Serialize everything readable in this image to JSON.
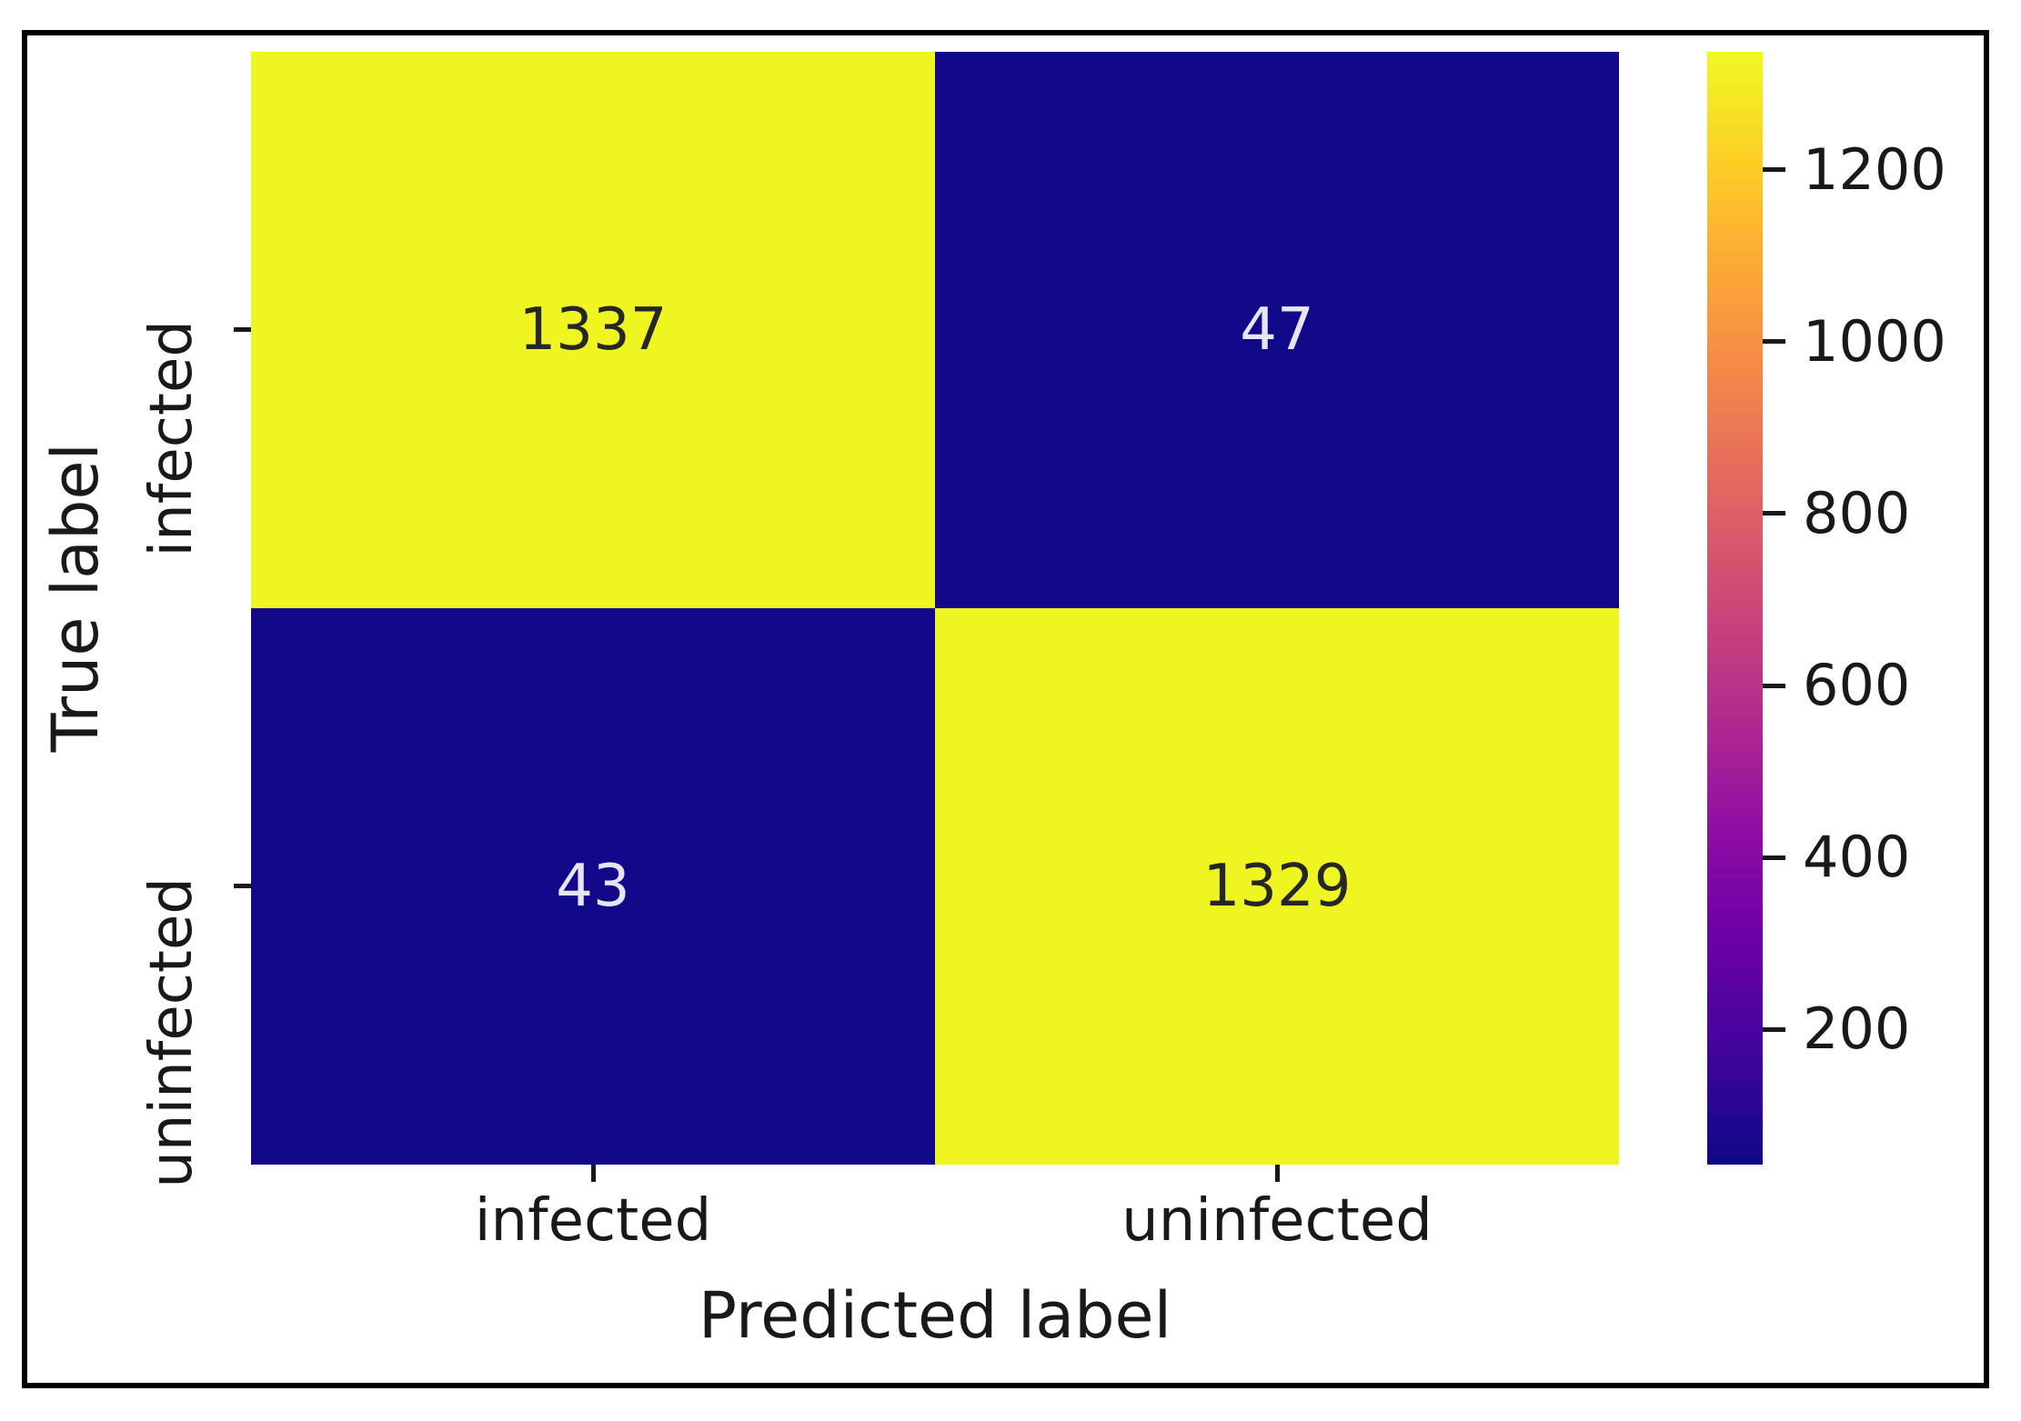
{
  "figure": {
    "kind": "confusion-matrix-heatmap",
    "background": "#ffffff",
    "frame_color": "#000000",
    "text_color": "#191919"
  },
  "chart_data": {
    "type": "heatmap",
    "title": "",
    "xlabel": "Predicted label",
    "ylabel": "True label",
    "x_categories": [
      "infected",
      "uninfected"
    ],
    "y_categories": [
      "infected",
      "uninfected"
    ],
    "matrix": [
      [
        1337,
        47
      ],
      [
        43,
        1329
      ]
    ],
    "cell_colors": [
      [
        "#eff521",
        "#11098a"
      ],
      [
        "#11098a",
        "#eff521"
      ]
    ],
    "cell_text_colors": [
      [
        "#262626",
        "#e7e5f4"
      ],
      [
        "#e7e5f4",
        "#262626"
      ]
    ],
    "colormap": "plasma",
    "vmin": 43,
    "vmax": 1337,
    "grid": false,
    "legend_position": "colorbar-right",
    "colorbar": {
      "ticks": [
        200,
        400,
        600,
        800,
        1000,
        1200
      ],
      "gradient_stops": [
        "#0d0887",
        "#41049d",
        "#6a00a8",
        "#8f0da4",
        "#b12a90",
        "#cc4778",
        "#e16462",
        "#f2844b",
        "#fca636",
        "#fcce25",
        "#f0f921"
      ]
    }
  }
}
